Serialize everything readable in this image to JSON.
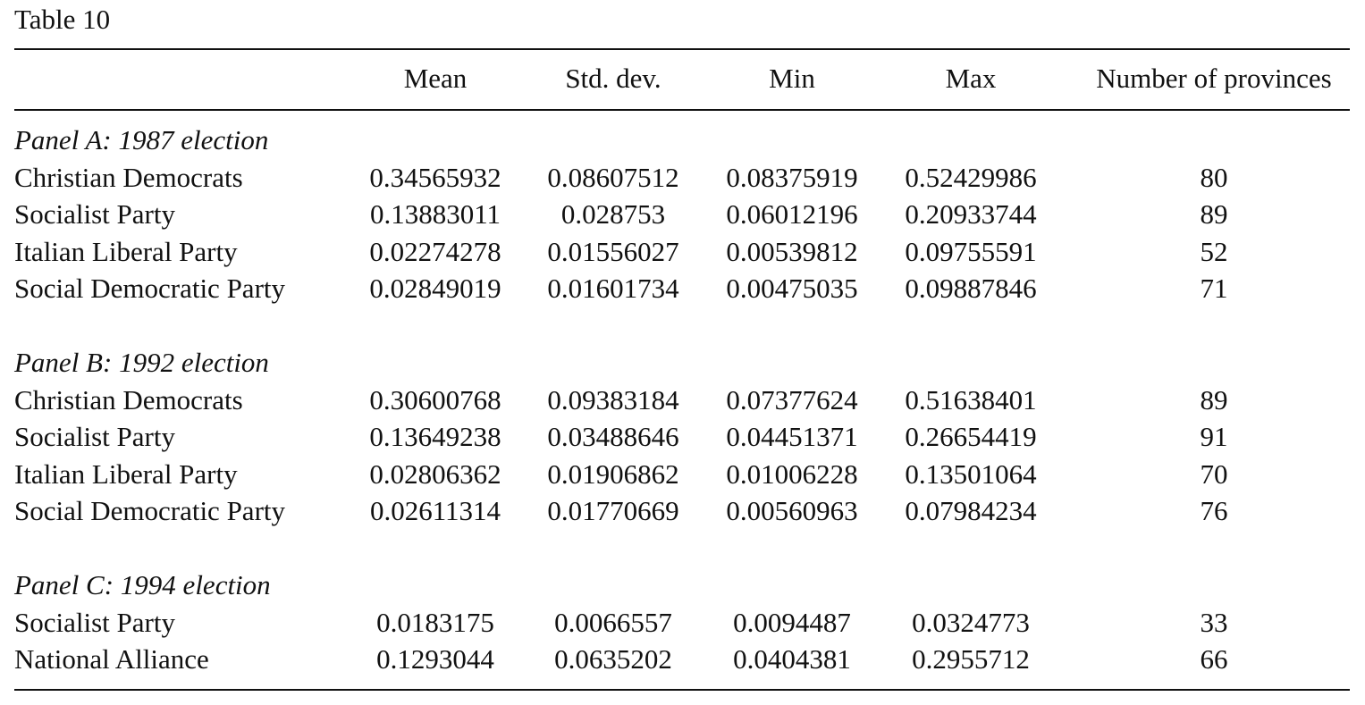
{
  "title": "Table 10",
  "columns": [
    "Mean",
    "Std. dev.",
    "Min",
    "Max",
    "Number of provinces"
  ],
  "panels": [
    {
      "title": "Panel A: 1987 election",
      "rows": [
        {
          "label": "Christian Democrats",
          "values": [
            "0.34565932",
            "0.08607512",
            "0.08375919",
            "0.52429986",
            "80"
          ]
        },
        {
          "label": "Socialist Party",
          "values": [
            "0.13883011",
            "0.028753",
            "0.06012196",
            "0.20933744",
            "89"
          ]
        },
        {
          "label": "Italian Liberal Party",
          "values": [
            "0.02274278",
            "0.01556027",
            "0.00539812",
            "0.09755591",
            "52"
          ]
        },
        {
          "label": "Social Democratic Party",
          "values": [
            "0.02849019",
            "0.01601734",
            "0.00475035",
            "0.09887846",
            "71"
          ]
        }
      ]
    },
    {
      "title": "Panel B: 1992 election",
      "rows": [
        {
          "label": "Christian Democrats",
          "values": [
            "0.30600768",
            "0.09383184",
            "0.07377624",
            "0.51638401",
            "89"
          ]
        },
        {
          "label": "Socialist Party",
          "values": [
            "0.13649238",
            "0.03488646",
            "0.04451371",
            "0.26654419",
            "91"
          ]
        },
        {
          "label": "Italian Liberal Party",
          "values": [
            "0.02806362",
            "0.01906862",
            "0.01006228",
            "0.13501064",
            "70"
          ]
        },
        {
          "label": "Social Democratic Party",
          "values": [
            "0.02611314",
            "0.01770669",
            "0.00560963",
            "0.07984234",
            "76"
          ]
        }
      ]
    },
    {
      "title": "Panel C: 1994 election",
      "rows": [
        {
          "label": "Socialist Party",
          "values": [
            "0.0183175",
            "0.0066557",
            "0.0094487",
            "0.0324773",
            "33"
          ]
        },
        {
          "label": "National Alliance",
          "values": [
            "0.1293044",
            "0.0635202",
            "0.0404381",
            "0.2955712",
            "66"
          ]
        }
      ]
    }
  ]
}
